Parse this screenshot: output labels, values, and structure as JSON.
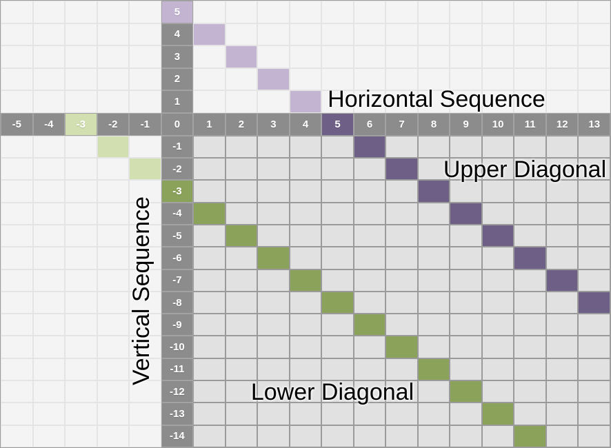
{
  "labels": {
    "horizontal": "Horizontal Sequence",
    "vertical": "Vertical Sequence",
    "upper": "Upper Diagonal",
    "lower": "Lower Diagonal"
  },
  "colors": {
    "header_bg": "#8c8c8c",
    "header_divider": "#a3a3a3",
    "header_text": "#ffffff",
    "main_cell": "#e1e1e1",
    "main_grid_line": "#9a9a9a",
    "outer_cell": "#f4f4f4",
    "outer_grid_line": "#e4e4e4",
    "purple_dark": "#6e5f87",
    "purple_light": "#c3b4d2",
    "green_dark": "#8ba25a",
    "green_light": "#d2dfb0",
    "label_text": "#000000"
  },
  "grid": {
    "col_values": [
      -5,
      -4,
      -3,
      -2,
      -1,
      0,
      1,
      2,
      3,
      4,
      5,
      6,
      7,
      8,
      9,
      10,
      11,
      12,
      13
    ],
    "row_values": [
      5,
      4,
      3,
      2,
      1,
      0,
      -1,
      -2,
      -3,
      -4,
      -5,
      -6,
      -7,
      -8,
      -9,
      -10,
      -11,
      -12,
      -13,
      -14
    ],
    "origin_value": 0,
    "upper_diagonal": 5,
    "lower_diagonal": -3,
    "highlights": {
      "header_row": [
        {
          "col": 5,
          "color": "purple_dark"
        },
        {
          "col": -3,
          "color": "green_light"
        }
      ],
      "header_col": [
        {
          "row": 5,
          "color": "purple_light"
        },
        {
          "row": -3,
          "color": "green_dark"
        }
      ],
      "cells": [
        {
          "row": 4,
          "col": 1,
          "color": "purple_light"
        },
        {
          "row": 3,
          "col": 2,
          "color": "purple_light"
        },
        {
          "row": 2,
          "col": 3,
          "color": "purple_light"
        },
        {
          "row": 1,
          "col": 4,
          "color": "purple_light"
        },
        {
          "row": -1,
          "col": 6,
          "color": "purple_dark"
        },
        {
          "row": -2,
          "col": 7,
          "color": "purple_dark"
        },
        {
          "row": -3,
          "col": 8,
          "color": "purple_dark"
        },
        {
          "row": -4,
          "col": 9,
          "color": "purple_dark"
        },
        {
          "row": -5,
          "col": 10,
          "color": "purple_dark"
        },
        {
          "row": -6,
          "col": 11,
          "color": "purple_dark"
        },
        {
          "row": -7,
          "col": 12,
          "color": "purple_dark"
        },
        {
          "row": -8,
          "col": 13,
          "color": "purple_dark"
        },
        {
          "row": -1,
          "col": -2,
          "color": "green_light"
        },
        {
          "row": -2,
          "col": -1,
          "color": "green_light"
        },
        {
          "row": -4,
          "col": 1,
          "color": "green_dark"
        },
        {
          "row": -5,
          "col": 2,
          "color": "green_dark"
        },
        {
          "row": -6,
          "col": 3,
          "color": "green_dark"
        },
        {
          "row": -7,
          "col": 4,
          "color": "green_dark"
        },
        {
          "row": -8,
          "col": 5,
          "color": "green_dark"
        },
        {
          "row": -9,
          "col": 6,
          "color": "green_dark"
        },
        {
          "row": -10,
          "col": 7,
          "color": "green_dark"
        },
        {
          "row": -11,
          "col": 8,
          "color": "green_dark"
        },
        {
          "row": -12,
          "col": 9,
          "color": "green_dark"
        },
        {
          "row": -13,
          "col": 10,
          "color": "green_dark"
        },
        {
          "row": -14,
          "col": 11,
          "color": "green_dark"
        }
      ]
    }
  }
}
